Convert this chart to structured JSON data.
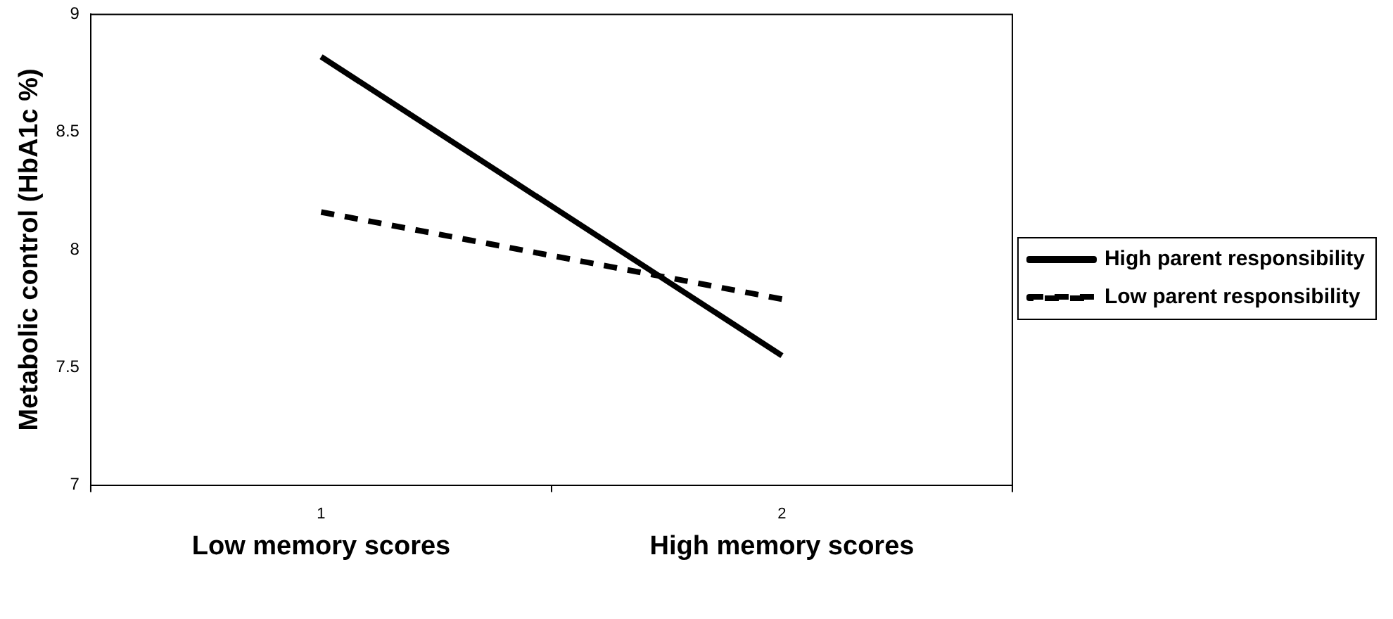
{
  "chart_data": {
    "type": "line",
    "ylabel": "Metabolic control (HbA1c %)",
    "categories": [
      "1",
      "2"
    ],
    "series": [
      {
        "name": "High parent responsibility",
        "color": "#000000",
        "line_style": "solid",
        "values": [
          8.82,
          7.55
        ]
      },
      {
        "name": "Low parent responsibility",
        "color": "#000000",
        "line_style": "dashed",
        "values": [
          8.16,
          7.79
        ]
      }
    ],
    "ylim": [
      7,
      9
    ],
    "yticks": [
      7,
      7.5,
      8,
      8.5,
      9
    ],
    "grid": false,
    "legend": "right",
    "marker": "none",
    "annotations": [
      "Low memory scores",
      "High memory scores"
    ]
  }
}
